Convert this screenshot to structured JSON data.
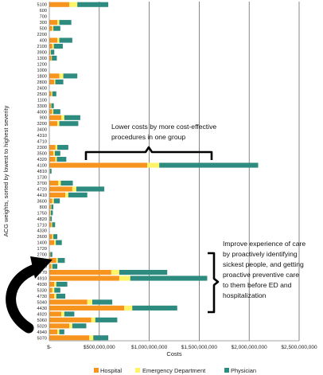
{
  "chart_data": {
    "type": "bar",
    "orientation": "horizontal",
    "stacked": true,
    "title": "",
    "xlabel": "Costs",
    "ylabel": "ACG weights, sorted by lowest to highest severity",
    "xlim": [
      0,
      2500000000
    ],
    "x_ticks": [
      "$-",
      "$500,000,000",
      "$1,000,000,000",
      "$1,500,000,000",
      "$2,000,000,000",
      "$2,500,000,000"
    ],
    "grid": "vertical",
    "legend_position": "bottom",
    "colors": {
      "Hospital": "#f7941d",
      "Emergency Department": "#fff467",
      "Physician": "#2e8b7f"
    },
    "categories": [
      "5100",
      "600",
      "700",
      "300",
      "500",
      "2200",
      "400",
      "2100",
      "3900",
      "1300",
      "1200",
      "1000",
      "1800",
      "2800",
      "2400",
      "2500",
      "1100",
      "3300",
      "4000",
      "900",
      "3200",
      "3400",
      "4310",
      "4710",
      "2300",
      "3500",
      "4320",
      "4100",
      "4810",
      "1730",
      "3700",
      "4720",
      "4410",
      "3600",
      "800",
      "1750",
      "4820",
      "1710",
      "4330",
      "2600",
      "1400",
      "1720",
      "2700",
      "1500",
      "1740",
      "1770",
      "4910",
      "4930",
      "5330",
      "4730",
      "5040",
      "4430",
      "4920",
      "5060",
      "5020",
      "4940",
      "5070"
    ],
    "series": [
      {
        "name": "Hospital",
        "values": [
          200000000,
          0,
          0,
          80000000,
          30000000,
          0,
          80000000,
          30000000,
          10000000,
          20000000,
          0,
          0,
          100000000,
          50000000,
          0,
          20000000,
          0,
          15000000,
          30000000,
          120000000,
          80000000,
          0,
          0,
          0,
          60000000,
          40000000,
          60000000,
          980000000,
          5000000,
          0,
          90000000,
          230000000,
          160000000,
          30000000,
          15000000,
          10000000,
          8000000,
          20000000,
          0,
          30000000,
          50000000,
          0,
          8000000,
          70000000,
          20000000,
          620000000,
          700000000,
          50000000,
          30000000,
          50000000,
          380000000,
          750000000,
          120000000,
          420000000,
          200000000,
          80000000,
          400000000
        ]
      },
      {
        "name": "Emergency Department",
        "values": [
          80000000,
          0,
          0,
          20000000,
          10000000,
          0,
          20000000,
          15000000,
          5000000,
          5000000,
          0,
          0,
          40000000,
          10000000,
          0,
          10000000,
          0,
          5000000,
          10000000,
          30000000,
          20000000,
          0,
          0,
          0,
          20000000,
          15000000,
          15000000,
          120000000,
          2000000,
          0,
          25000000,
          40000000,
          30000000,
          15000000,
          5000000,
          5000000,
          2000000,
          8000000,
          0,
          10000000,
          15000000,
          0,
          2000000,
          15000000,
          10000000,
          80000000,
          110000000,
          20000000,
          20000000,
          20000000,
          50000000,
          80000000,
          30000000,
          40000000,
          30000000,
          20000000,
          40000000
        ]
      },
      {
        "name": "Physician",
        "values": [
          310000000,
          0,
          0,
          120000000,
          70000000,
          0,
          130000000,
          90000000,
          35000000,
          50000000,
          0,
          0,
          140000000,
          80000000,
          0,
          40000000,
          0,
          25000000,
          70000000,
          160000000,
          190000000,
          0,
          0,
          0,
          110000000,
          55000000,
          95000000,
          990000000,
          15000000,
          0,
          120000000,
          280000000,
          190000000,
          60000000,
          20000000,
          20000000,
          15000000,
          30000000,
          0,
          40000000,
          60000000,
          0,
          20000000,
          70000000,
          50000000,
          480000000,
          770000000,
          110000000,
          60000000,
          90000000,
          200000000,
          450000000,
          100000000,
          220000000,
          140000000,
          50000000,
          150000000
        ]
      }
    ],
    "annotations": [
      "Lower costs by more cost-effective procedures in one group",
      "Improve experience of care by proactively identifying sickest people, and getting proactive preventive care to them before ED and hospitalization"
    ]
  },
  "annotations_text": {
    "top_lines": [
      "Lower costs by more cost-effective",
      "procedures in one group"
    ],
    "right_lines": [
      "Improve experience of care",
      "by proactively identifying",
      "sickest people, and getting",
      "proactive preventive care",
      "to them before ED and",
      "hospitalization"
    ]
  }
}
